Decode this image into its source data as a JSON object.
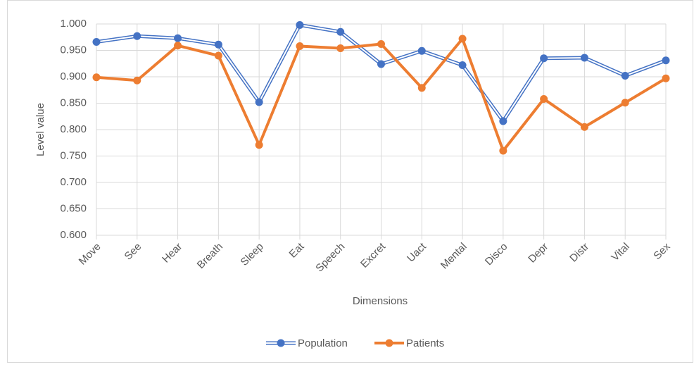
{
  "chart_data": {
    "type": "line",
    "categories": [
      "Move",
      "See",
      "Hear",
      "Breath",
      "Sleep",
      "Eat",
      "Speech",
      "Excret",
      "Uact",
      "Mental",
      "Disco",
      "Depr",
      "Distr",
      "Vital",
      "Sex"
    ],
    "series": [
      {
        "name": "Population",
        "color": "#4472c4",
        "values": [
          0.966,
          0.977,
          0.973,
          0.961,
          0.852,
          0.998,
          0.985,
          0.924,
          0.949,
          0.922,
          0.816,
          0.935,
          0.936,
          0.902,
          0.931
        ]
      },
      {
        "name": "Patients",
        "color": "#ed7d31",
        "values": [
          0.899,
          0.893,
          0.959,
          0.94,
          0.771,
          0.958,
          0.954,
          0.962,
          0.879,
          0.972,
          0.76,
          0.858,
          0.805,
          0.851,
          0.897
        ]
      }
    ],
    "x_label": "Dimensions",
    "y_label": "Level value",
    "ylim": [
      0.6,
      1.0
    ],
    "yticks": [
      {
        "value": 0.6,
        "label": "0.600"
      },
      {
        "value": 0.65,
        "label": "0.650"
      },
      {
        "value": 0.7,
        "label": "0.700"
      },
      {
        "value": 0.75,
        "label": "0.750"
      },
      {
        "value": 0.8,
        "label": "0.800"
      },
      {
        "value": 0.85,
        "label": "0.850"
      },
      {
        "value": 0.9,
        "label": "0.900"
      },
      {
        "value": 0.95,
        "label": "0.950"
      },
      {
        "value": 1.0,
        "label": "1.000"
      }
    ],
    "grid": true,
    "legend": "bottom"
  }
}
